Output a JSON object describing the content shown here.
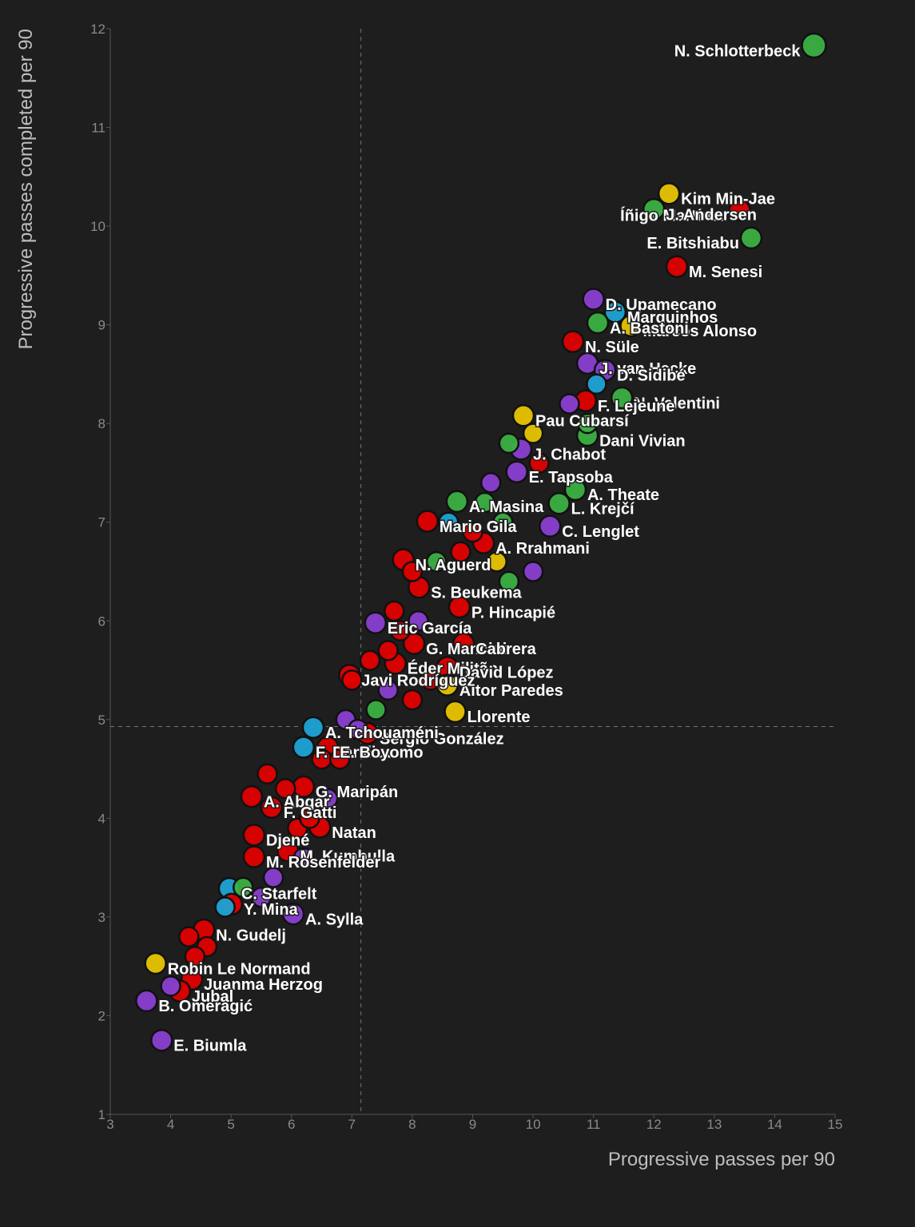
{
  "chart_data": {
    "type": "scatter",
    "xlabel": "Progressive passes per 90",
    "ylabel": "Progressive passes completed per 90",
    "xlim": [
      3,
      15
    ],
    "xticks": [
      3,
      4,
      5,
      6,
      7,
      8,
      9,
      10,
      11,
      12,
      13,
      14,
      15
    ],
    "ylim": [
      1,
      12
    ],
    "yticks": [
      1,
      2,
      3,
      4,
      5,
      6,
      7,
      8,
      9,
      10,
      11,
      12
    ],
    "reference_lines": {
      "x": 7.15,
      "y": 4.93
    },
    "grid": false,
    "points": {
      "names": [
        "N. Schlotterbeck",
        "Íñigo Martínez",
        "Kim Min-Jae",
        "J. Andersen",
        "E. Bitshiabu",
        "M. Senesi",
        "D. Upamecano",
        "Marquinhos",
        "Marcos Alonso",
        "A. Bastoni",
        "N. Süle",
        "J. van Hecke",
        "D. Sidibé",
        "N. Valentini",
        "Pau Cubarsí",
        "F. Lejeune",
        "J. Chabot",
        "Dani Vivian",
        "E. Tapsoba",
        "A. Theate",
        "A. Masina",
        "L. Krejčí",
        "Mario Gila",
        "C. Lenglet",
        "N. Aguerd",
        "A. Rrahmani",
        "S. Beukema",
        "P. Hincapié",
        "Eric García",
        "G. Mancini",
        "Cabrera",
        "Éder Militão",
        "David López",
        "Aitor Paredes",
        "Javi Rodríguez",
        "Llorente",
        "Sergio González",
        "A. Tchouaméni",
        "F. Daniliuc",
        "E. Boyomo",
        "G. Maripán",
        "A. Abqar",
        "F. Gatti",
        "Natan",
        "Djené",
        "M. Kumbulla",
        "M. Rosenfelder",
        "C. Starfelt",
        "Y. Mina",
        "A. Sylla",
        "N. Gudelj",
        "Robin Le Normand",
        "Juanma Herzog",
        "Jubal",
        "B. Omeragić",
        "E. Biumla",
        null,
        null,
        null,
        null,
        null,
        null,
        null,
        null,
        null,
        null,
        null,
        null,
        null,
        null,
        null,
        null,
        null,
        null,
        null,
        null,
        null,
        null,
        null,
        null,
        null,
        null,
        null,
        null,
        null,
        null,
        null,
        null,
        null,
        null,
        null,
        null,
        null,
        null,
        null,
        null,
        null,
        null,
        null,
        null,
        null
      ],
      "x": [
        14.65,
        13.42,
        12.25,
        12.0,
        13.61,
        12.38,
        11.0,
        11.36,
        11.62,
        11.07,
        10.66,
        10.9,
        11.19,
        11.47,
        9.84,
        10.87,
        9.8,
        10.9,
        9.73,
        10.7,
        8.74,
        10.43,
        8.25,
        10.28,
        7.85,
        9.18,
        8.11,
        8.78,
        7.39,
        8.03,
        8.85,
        7.72,
        8.58,
        8.58,
        6.96,
        8.71,
        7.26,
        6.36,
        6.2,
        6.6,
        6.2,
        5.34,
        5.67,
        6.47,
        5.38,
        5.94,
        5.38,
        4.97,
        5.01,
        6.03,
        4.55,
        3.75,
        4.35,
        4.15,
        3.6,
        3.85,
        4.3,
        4.6,
        4.9,
        5.2,
        5.5,
        5.7,
        5.6,
        5.9,
        6.1,
        6.3,
        6.5,
        6.8,
        6.9,
        7.1,
        7.4,
        7.6,
        7.3,
        7.6,
        7.8,
        8.1,
        7.7,
        8.0,
        8.4,
        8.8,
        9.0,
        8.6,
        9.2,
        9.5,
        9.6,
        9.4,
        10.0,
        9.3,
        9.6,
        10.1,
        10.0,
        10.6,
        10.9,
        11.05,
        8.3,
        8.0,
        7.0,
        6.6,
        6.2,
        4.0,
        4.4
      ],
      "values": [
        11.83,
        10.16,
        10.33,
        10.17,
        9.88,
        9.59,
        9.26,
        9.13,
        8.99,
        9.02,
        8.83,
        8.61,
        8.54,
        8.26,
        8.08,
        8.23,
        7.74,
        7.88,
        7.51,
        7.33,
        7.21,
        7.19,
        7.01,
        6.96,
        6.62,
        6.79,
        6.34,
        6.14,
        5.98,
        5.77,
        5.77,
        5.57,
        5.53,
        5.35,
        5.45,
        5.08,
        4.86,
        4.92,
        4.72,
        4.72,
        4.32,
        4.22,
        4.11,
        3.91,
        3.83,
        3.67,
        3.61,
        3.29,
        3.13,
        3.03,
        2.87,
        2.53,
        2.37,
        2.25,
        2.15,
        1.75,
        2.8,
        2.7,
        3.1,
        3.3,
        3.2,
        3.4,
        4.45,
        4.3,
        3.9,
        4.0,
        4.6,
        4.6,
        5.0,
        4.9,
        5.1,
        5.3,
        5.6,
        5.7,
        5.9,
        6.0,
        6.1,
        6.5,
        6.6,
        6.7,
        6.9,
        7.0,
        7.2,
        7.0,
        6.4,
        6.6,
        6.5,
        7.4,
        7.8,
        7.6,
        7.9,
        8.2,
        8.0,
        8.4,
        5.4,
        5.2,
        5.4,
        4.2,
        3.6,
        2.3,
        2.6
      ],
      "colors": [
        "#3cb043",
        "#e00000",
        "#e8c400",
        "#3cb043",
        "#3cb043",
        "#e00000",
        "#8a3fd1",
        "#1fa3d6",
        "#e8c400",
        "#3cb043",
        "#e00000",
        "#8a3fd1",
        "#8a3fd1",
        "#3cb043",
        "#e8c400",
        "#e00000",
        "#8a3fd1",
        "#3cb043",
        "#8a3fd1",
        "#3cb043",
        "#3cb043",
        "#3cb043",
        "#e00000",
        "#8a3fd1",
        "#e00000",
        "#e00000",
        "#e00000",
        "#e00000",
        "#8a3fd1",
        "#e00000",
        "#e00000",
        "#e00000",
        "#e00000",
        "#e8c400",
        "#e00000",
        "#e8c400",
        "#e00000",
        "#1fa3d6",
        "#1fa3d6",
        "#e00000",
        "#e00000",
        "#e00000",
        "#e00000",
        "#e00000",
        "#e00000",
        "#e00000",
        "#e00000",
        "#1fa3d6",
        "#e00000",
        "#8a3fd1",
        "#e00000",
        "#e8c400",
        "#e00000",
        "#e00000",
        "#8a3fd1",
        "#8a3fd1",
        "#e00000",
        "#e00000",
        "#1fa3d6",
        "#3cb043",
        "#8a3fd1",
        "#8a3fd1",
        "#e00000",
        "#e00000",
        "#e00000",
        "#e00000",
        "#e00000",
        "#e00000",
        "#8a3fd1",
        "#8a3fd1",
        "#3cb043",
        "#8a3fd1",
        "#e00000",
        "#e00000",
        "#e00000",
        "#8a3fd1",
        "#e00000",
        "#e00000",
        "#3cb043",
        "#e00000",
        "#e00000",
        "#1fa3d6",
        "#3cb043",
        "#3cb043",
        "#3cb043",
        "#e8c400",
        "#8a3fd1",
        "#8a3fd1",
        "#3cb043",
        "#e00000",
        "#e8c400",
        "#8a3fd1",
        "#3cb043",
        "#1fa3d6",
        "#e00000",
        "#e00000",
        "#e00000",
        "#8a3fd1",
        "#8a3fd1",
        "#8a3fd1",
        "#e00000"
      ]
    }
  }
}
